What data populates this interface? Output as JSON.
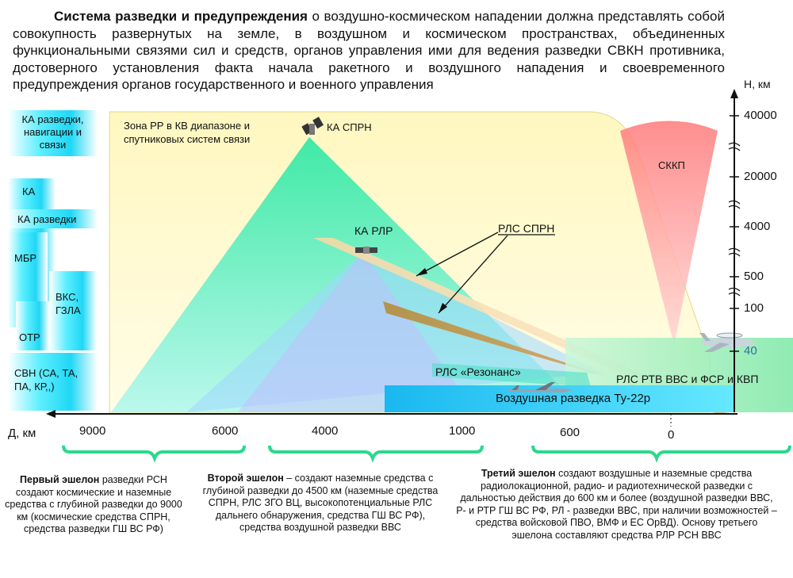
{
  "intro": {
    "lead_bold": "Система разведки и предупреждения",
    "body": " о воздушно-космическом нападении  должна представлять собой совокупность развернутых на земле, в воздушном и космическом пространствах, объединенных функциональными связями сил и средств, органов управления ими для ведения разведки СВКН противника, достоверного установления факта начала ракетного и воздушного нападения и своевременного предупреждения органов государственного и военного управления"
  },
  "left_panel": {
    "ka_reconnaissance_nav_comm": "КА разведки, навигации и связи",
    "ka": "КА",
    "ka_recon": "КА разведки",
    "mbr": "МБР",
    "vks": "ВКС, ГЗЛА",
    "otr": "ОТР",
    "svn": "СВН (СА, ТА, ПА, КР,,)"
  },
  "scene": {
    "zone_rr": "Зона РР в КВ диапазоне и спутниковых систем связи",
    "ka_sprn": "КА СПРН",
    "ka_rlr": "КА РЛР",
    "rls_sprn": "РЛС СПРН",
    "skkp": "СККП",
    "rls_resonance": "РЛС «Резонанс»",
    "rls_rtv": "РЛС РТВ ВВС и ФСР и КВП",
    "air_recon": "Воздушная разведка Ту-22р"
  },
  "altitude_axis": {
    "title": "Н, км",
    "ticks": [
      "40000",
      "20000",
      "4000",
      "500",
      "100",
      "40"
    ]
  },
  "distance_axis": {
    "title": "Д, км",
    "ticks": [
      "9000",
      "6000",
      "4000",
      "1000",
      "600",
      "0"
    ]
  },
  "echelons": {
    "first_bold": "Первый эшелон",
    "first_text": " разведки РСН создают космические и наземные средства с глубиной разведки до 9000 км (космические средства СПРН, средства разведки ГШ ВС РФ)",
    "second_bold": "Второй  эшелон",
    "second_text": " – создают наземные средства с глубиной разведки до 4500 км (наземные средства СПРН, РЛС ЗГО ВЦ, высокопотенциальные РЛС дальнего обнаружения, средства  ГШ ВС РФ), средства воздушной разведки ВВС",
    "third_bold": "Третий эшелон",
    "third_text": " создают воздушные и наземные средства радиолокационной, радио- и радиотехнической разведки с дальностью действия  до 600 км и более (воздушной разведки ВВС, Р- и РТР ГШ ВС РФ, РЛ - разведки ВВС, при наличии возможностей – средства войсковой ПВО, ВМФ и ЕС ОрВД). Основу третьего эшелона составляют средства РЛР РСН ВВС"
  },
  "colors": {
    "yellow_zone": "#fffbd0",
    "cyan_box": "#2ee6ff",
    "green_brace": "#2cd88c",
    "skkp_cone": "#ff8080",
    "teal": "#35d6b0"
  }
}
